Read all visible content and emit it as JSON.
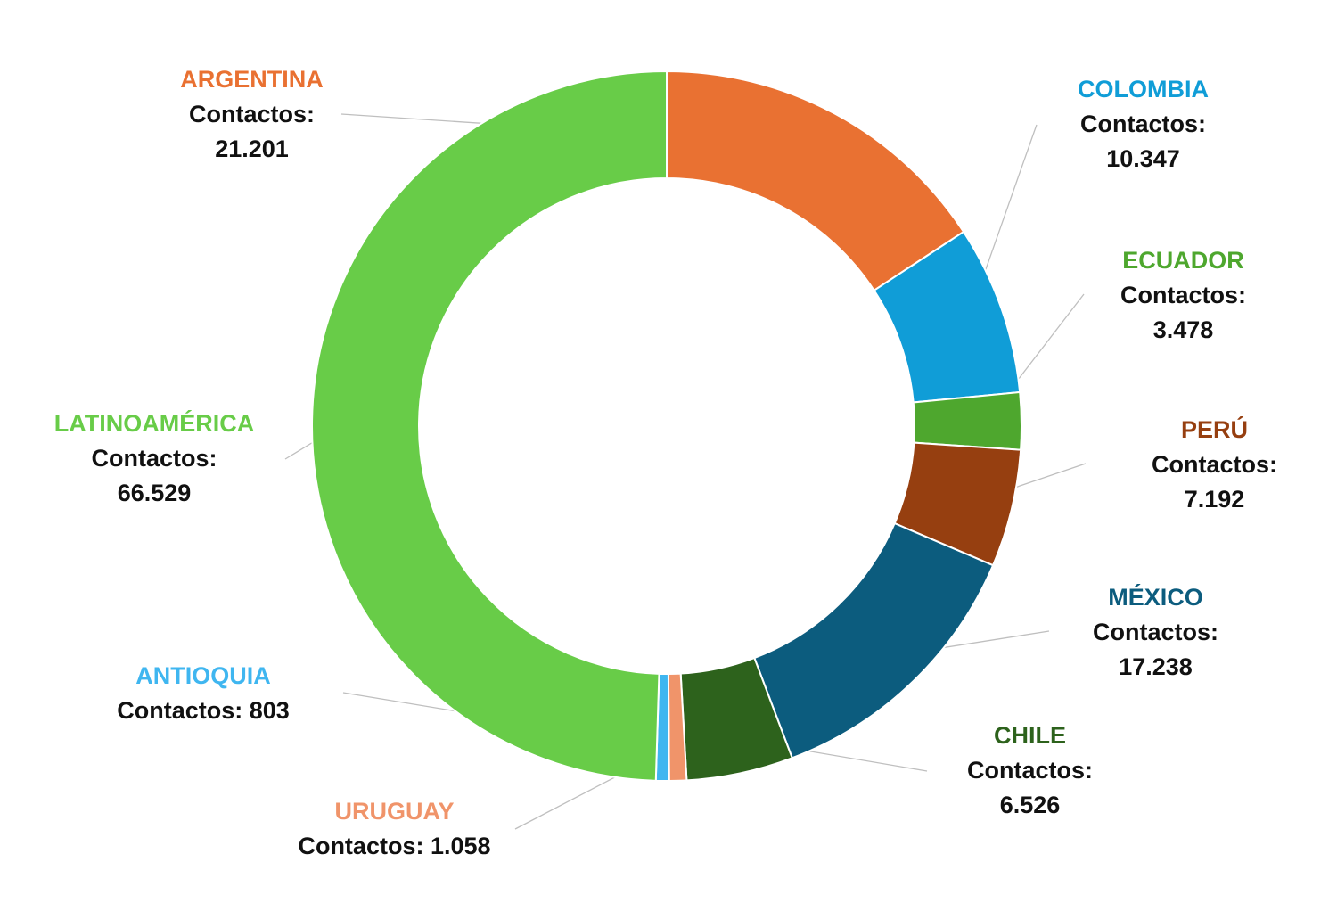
{
  "chart_data": {
    "type": "pie",
    "donut": true,
    "title": "",
    "value_prefix": "Contactos: ",
    "slices": [
      {
        "name": "ARGENTINA",
        "value": 21201,
        "value_label": "21.201",
        "color": "#E97132"
      },
      {
        "name": "COLOMBIA",
        "value": 10347,
        "value_label": "10.347",
        "color": "#109DD7"
      },
      {
        "name": "ECUADOR",
        "value": 3478,
        "value_label": "3.478",
        "color": "#4EA72E"
      },
      {
        "name": "PERÚ",
        "value": 7192,
        "value_label": "7.192",
        "color": "#963F10"
      },
      {
        "name": "MÉXICO",
        "value": 17238,
        "value_label": "17.238",
        "color": "#0C5C7E"
      },
      {
        "name": "CHILE",
        "value": 6526,
        "value_label": "6.526",
        "color": "#2D621C"
      },
      {
        "name": "URUGUAY",
        "value": 1058,
        "value_label": "1.058",
        "color": "#F0946A"
      },
      {
        "name": "ANTIOQUIA",
        "value": 803,
        "value_label": "803",
        "color": "#3FB6F0"
      },
      {
        "name": "LATINOAMÉRICA",
        "value": 66529,
        "value_label": "66.529",
        "color": "#68CC48"
      }
    ]
  }
}
